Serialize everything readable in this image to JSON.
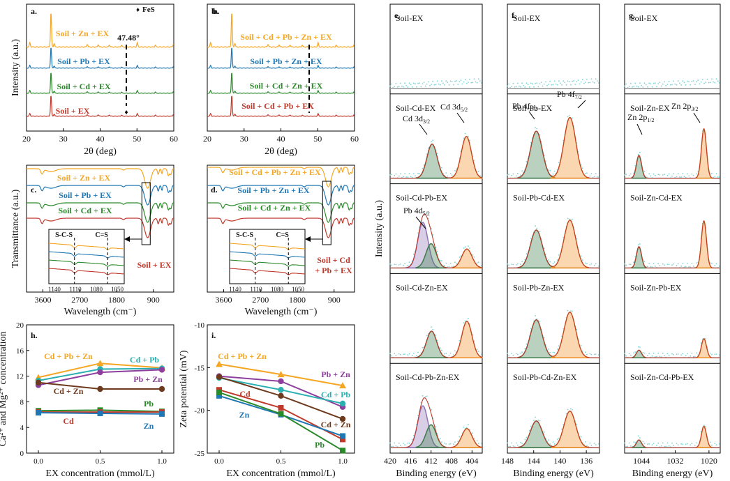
{
  "chart_data": [
    {
      "id": "a",
      "type": "line",
      "panel_label": "a.",
      "legend": [
        {
          "marker": "♦",
          "label": "FeS"
        }
      ],
      "xlabel": "2θ (deg)",
      "ylabel": "Intensity (a.u.)",
      "xlim": [
        20,
        60
      ],
      "xticks": [
        "20",
        "30",
        "40",
        "50",
        "60"
      ],
      "annotation": "47.48°",
      "series": [
        {
          "name": "Soil + Zn + EX",
          "color": "#f5a623"
        },
        {
          "name": "Soil + Pb + EX",
          "color": "#1f77b4"
        },
        {
          "name": "Soil + Cd + EX",
          "color": "#2a8a2a"
        },
        {
          "name": "Soil + EX",
          "color": "#c0392b"
        }
      ]
    },
    {
      "id": "b",
      "type": "line",
      "panel_label": "b.",
      "xlabel": "2θ (deg)",
      "xlim": [
        20,
        60
      ],
      "xticks": [
        "20",
        "30",
        "40",
        "50",
        "60"
      ],
      "series": [
        {
          "name": "Soil + Cd + Pb + Zn + EX",
          "color": "#f5a623"
        },
        {
          "name": "Soil + Pb + Zn + EX",
          "color": "#1f77b4"
        },
        {
          "name": "Soil + Cd + Zn + EX",
          "color": "#2a8a2a"
        },
        {
          "name": "Soil + Cd + Pb + EX",
          "color": "#c0392b"
        }
      ]
    },
    {
      "id": "c",
      "type": "line",
      "panel_label": "c.",
      "xlabel": "Wavelength (cm⁻)",
      "ylabel": "Transmittance (a.u.)",
      "xticks": [
        "3600",
        "2700",
        "1800",
        "900"
      ],
      "inset_labels": [
        "S-C-S",
        "C=S"
      ],
      "inset_xticks": [
        "1140",
        "1110",
        "1080",
        "1050"
      ],
      "series": [
        {
          "name": "Soil + Zn + EX",
          "color": "#f5a623"
        },
        {
          "name": "Soil + Pb + EX",
          "color": "#1f77b4"
        },
        {
          "name": "Soil + Cd + EX",
          "color": "#2a8a2a"
        },
        {
          "name": "Soil + EX",
          "color": "#c0392b"
        }
      ]
    },
    {
      "id": "d",
      "type": "line",
      "panel_label": "d.",
      "xlabel": "Wavelength (cm⁻)",
      "xticks": [
        "3600",
        "2700",
        "1800",
        "900"
      ],
      "inset_labels": [
        "S-C-S",
        "C=S"
      ],
      "inset_xticks": [
        "1140",
        "1110",
        "1080",
        "1050"
      ],
      "series": [
        {
          "name": "Soil + Cd + Pb + Zn + EX",
          "color": "#f5a623"
        },
        {
          "name": "Soil + Pb + Zn + EX",
          "color": "#1f77b4"
        },
        {
          "name": "Soil + Cd + Zn + EX",
          "color": "#2a8a2a"
        },
        {
          "name": "Soil + Cd + Pb + EX",
          "color": "#c0392b"
        }
      ],
      "red_label_lines": [
        "Soil + Cd",
        "+ Pb + EX"
      ]
    },
    {
      "id": "h",
      "type": "line",
      "panel_label": "h.",
      "xlabel": "EX concentration (mmol/L)",
      "ylabel": "Ca²⁺ and Mg²⁺ concentration",
      "x": [
        0,
        0.5,
        1.0
      ],
      "xticks": [
        "0.0",
        "0.5",
        "1.0"
      ],
      "ylim": [
        0,
        20
      ],
      "yticks": [
        "0",
        "4",
        "8",
        "12",
        "16",
        "20"
      ],
      "series": [
        {
          "name": "Cd + Pb + Zn",
          "color": "#f5a623",
          "marker": "triangle",
          "values": [
            11.8,
            14.0,
            13.3
          ]
        },
        {
          "name": "Cd + Pb",
          "color": "#2ab0b0",
          "marker": "circle",
          "values": [
            11.3,
            13.1,
            13.2
          ]
        },
        {
          "name": "Pb + Zn",
          "color": "#8e3f9e",
          "marker": "circle",
          "values": [
            10.6,
            12.6,
            13.0
          ]
        },
        {
          "name": "Cd + Zn",
          "color": "#6e3a1e",
          "marker": "circle",
          "values": [
            11.0,
            10.0,
            10.0
          ]
        },
        {
          "name": "Pb",
          "color": "#2a8a2a",
          "marker": "square",
          "values": [
            6.6,
            6.7,
            6.5
          ]
        },
        {
          "name": "Cd",
          "color": "#c0392b",
          "marker": "square",
          "values": [
            6.4,
            6.4,
            6.4
          ]
        },
        {
          "name": "Zn",
          "color": "#1f77b4",
          "marker": "square",
          "values": [
            6.3,
            6.2,
            6.1
          ]
        }
      ]
    },
    {
      "id": "i",
      "type": "line",
      "panel_label": "i.",
      "xlabel": "EX concentration (mmol/L)",
      "ylabel": "Zeta potential (mV)",
      "x": [
        0,
        0.5,
        1.0
      ],
      "xticks": [
        "0.0",
        "0.5",
        "1.0"
      ],
      "ylim": [
        -25,
        -10
      ],
      "yticks": [
        "-10",
        "-15",
        "-20",
        "-25"
      ],
      "series": [
        {
          "name": "Cd + Pb + Zn",
          "color": "#f5a623",
          "marker": "triangle",
          "values": [
            -14.6,
            -15.8,
            -17.1
          ]
        },
        {
          "name": "Pb + Zn",
          "color": "#8e3f9e",
          "marker": "circle",
          "values": [
            -16.0,
            -16.6,
            -19.6
          ]
        },
        {
          "name": "Cd + Pb",
          "color": "#2ab0b0",
          "marker": "circle",
          "values": [
            -16.2,
            -17.6,
            -19.2
          ]
        },
        {
          "name": "Cd",
          "color": "#c0392b",
          "marker": "square",
          "values": [
            -17.6,
            -19.7,
            -23.4
          ]
        },
        {
          "name": "Cd + Zn",
          "color": "#6e3a1e",
          "marker": "circle",
          "values": [
            -16.1,
            -18.3,
            -21.0
          ]
        },
        {
          "name": "Zn",
          "color": "#1f77b4",
          "marker": "square",
          "values": [
            -18.3,
            -20.5,
            -23.0
          ]
        },
        {
          "name": "Pb",
          "color": "#2a8a2a",
          "marker": "square",
          "values": [
            -17.9,
            -20.4,
            -24.7
          ]
        }
      ]
    },
    {
      "id": "e",
      "type": "area",
      "panel_label": "e.",
      "ylabel": "Intensity (a.u.)",
      "xlabel": "Binding energy (eV)",
      "xlim": [
        420,
        402
      ],
      "xticks": [
        "420",
        "416",
        "412",
        "408",
        "404"
      ],
      "rows": [
        {
          "label": "Soil-EX",
          "peaks": []
        },
        {
          "label": "Soil-Cd-EX",
          "peaks": [
            {
              "center": 411.8,
              "height": 0.45,
              "color": "#3d7a4a"
            },
            {
              "center": 405.1,
              "height": 0.55,
              "color": "#f08c1e"
            }
          ]
        },
        {
          "label": "Soil-Cd-Pb-EX",
          "peaks": [
            {
              "center": 413.6,
              "height": 0.6,
              "color": "#8e72b8"
            },
            {
              "center": 412.0,
              "height": 0.32,
              "color": "#3d7a4a"
            },
            {
              "center": 405.0,
              "height": 0.25,
              "color": "#f08c1e"
            }
          ]
        },
        {
          "label": "Soil-Cd-Zn-EX",
          "peaks": [
            {
              "center": 411.9,
              "height": 0.35,
              "color": "#3d7a4a"
            },
            {
              "center": 405.0,
              "height": 0.48,
              "color": "#f08c1e"
            }
          ]
        },
        {
          "label": "Soil-Cd-Pb-Zn-EX",
          "peaks": [
            {
              "center": 413.6,
              "height": 0.55,
              "color": "#8e72b8"
            },
            {
              "center": 412.0,
              "height": 0.3,
              "color": "#3d7a4a"
            },
            {
              "center": 405.0,
              "height": 0.25,
              "color": "#f08c1e"
            }
          ]
        }
      ],
      "peak_labels": [
        {
          "text": "Cd 3d",
          "sub": "3/2"
        },
        {
          "text": "Cd 3d",
          "sub": "5/2"
        },
        {
          "text": "Pb 4d",
          "sub": "5/2"
        }
      ]
    },
    {
      "id": "f",
      "type": "area",
      "panel_label": "f.",
      "xlabel": "Binding energy (eV)",
      "xlim": [
        148,
        134
      ],
      "xticks": [
        "148",
        "144",
        "140",
        "136"
      ],
      "rows": [
        {
          "label": "Soil-EX",
          "peaks": []
        },
        {
          "label": "Soil-Pb-EX",
          "peaks": [
            {
              "center": 143.6,
              "height": 0.62,
              "color": "#3d7a4a"
            },
            {
              "center": 138.5,
              "height": 0.8,
              "color": "#f08c1e"
            }
          ]
        },
        {
          "label": "Soil-Pb-Cd-EX",
          "peaks": [
            {
              "center": 143.6,
              "height": 0.5,
              "color": "#3d7a4a"
            },
            {
              "center": 138.5,
              "height": 0.63,
              "color": "#f08c1e"
            }
          ]
        },
        {
          "label": "Soil-Pb-Zn-EX",
          "peaks": [
            {
              "center": 143.6,
              "height": 0.5,
              "color": "#3d7a4a"
            },
            {
              "center": 138.5,
              "height": 0.6,
              "color": "#f08c1e"
            }
          ]
        },
        {
          "label": "Soil-Pb-Cd-Zn-EX",
          "peaks": [
            {
              "center": 143.6,
              "height": 0.35,
              "color": "#3d7a4a"
            },
            {
              "center": 138.5,
              "height": 0.48,
              "color": "#f08c1e"
            }
          ]
        }
      ],
      "peak_labels": [
        {
          "text": "Pb 4f",
          "sub": "5/2"
        },
        {
          "text": "Pb 4f",
          "sub": "7/2"
        }
      ]
    },
    {
      "id": "g",
      "type": "area",
      "panel_label": "g.",
      "xlabel": "Binding energy (eV)",
      "xlim": [
        1050,
        1016
      ],
      "xticks": [
        "1044",
        "1032",
        "1020"
      ],
      "rows": [
        {
          "label": "Soil-EX",
          "peaks": []
        },
        {
          "label": "Soil-Zn-EX",
          "peaks": [
            {
              "center": 1044.9,
              "height": 0.3,
              "color": "#3d7a4a"
            },
            {
              "center": 1021.8,
              "height": 0.65,
              "color": "#f08c1e"
            }
          ]
        },
        {
          "label": "Soil-Zn-Cd-EX",
          "peaks": [
            {
              "center": 1044.9,
              "height": 0.28,
              "color": "#3d7a4a"
            },
            {
              "center": 1021.8,
              "height": 0.62,
              "color": "#f08c1e"
            }
          ]
        },
        {
          "label": "Soil-Zn-Pb-EX",
          "peaks": [
            {
              "center": 1044.9,
              "height": 0.1,
              "color": "#3d7a4a"
            },
            {
              "center": 1021.8,
              "height": 0.25,
              "color": "#f08c1e"
            }
          ]
        },
        {
          "label": "Soil-Zn-Cd-Pb-EX",
          "peaks": [
            {
              "center": 1044.9,
              "height": 0.1,
              "color": "#3d7a4a"
            },
            {
              "center": 1021.8,
              "height": 0.28,
              "color": "#f08c1e"
            }
          ]
        }
      ],
      "peak_labels": [
        {
          "text": "Zn 2p",
          "sub": "1/2"
        },
        {
          "text": "Zn 2p",
          "sub": "3/2"
        }
      ]
    }
  ]
}
